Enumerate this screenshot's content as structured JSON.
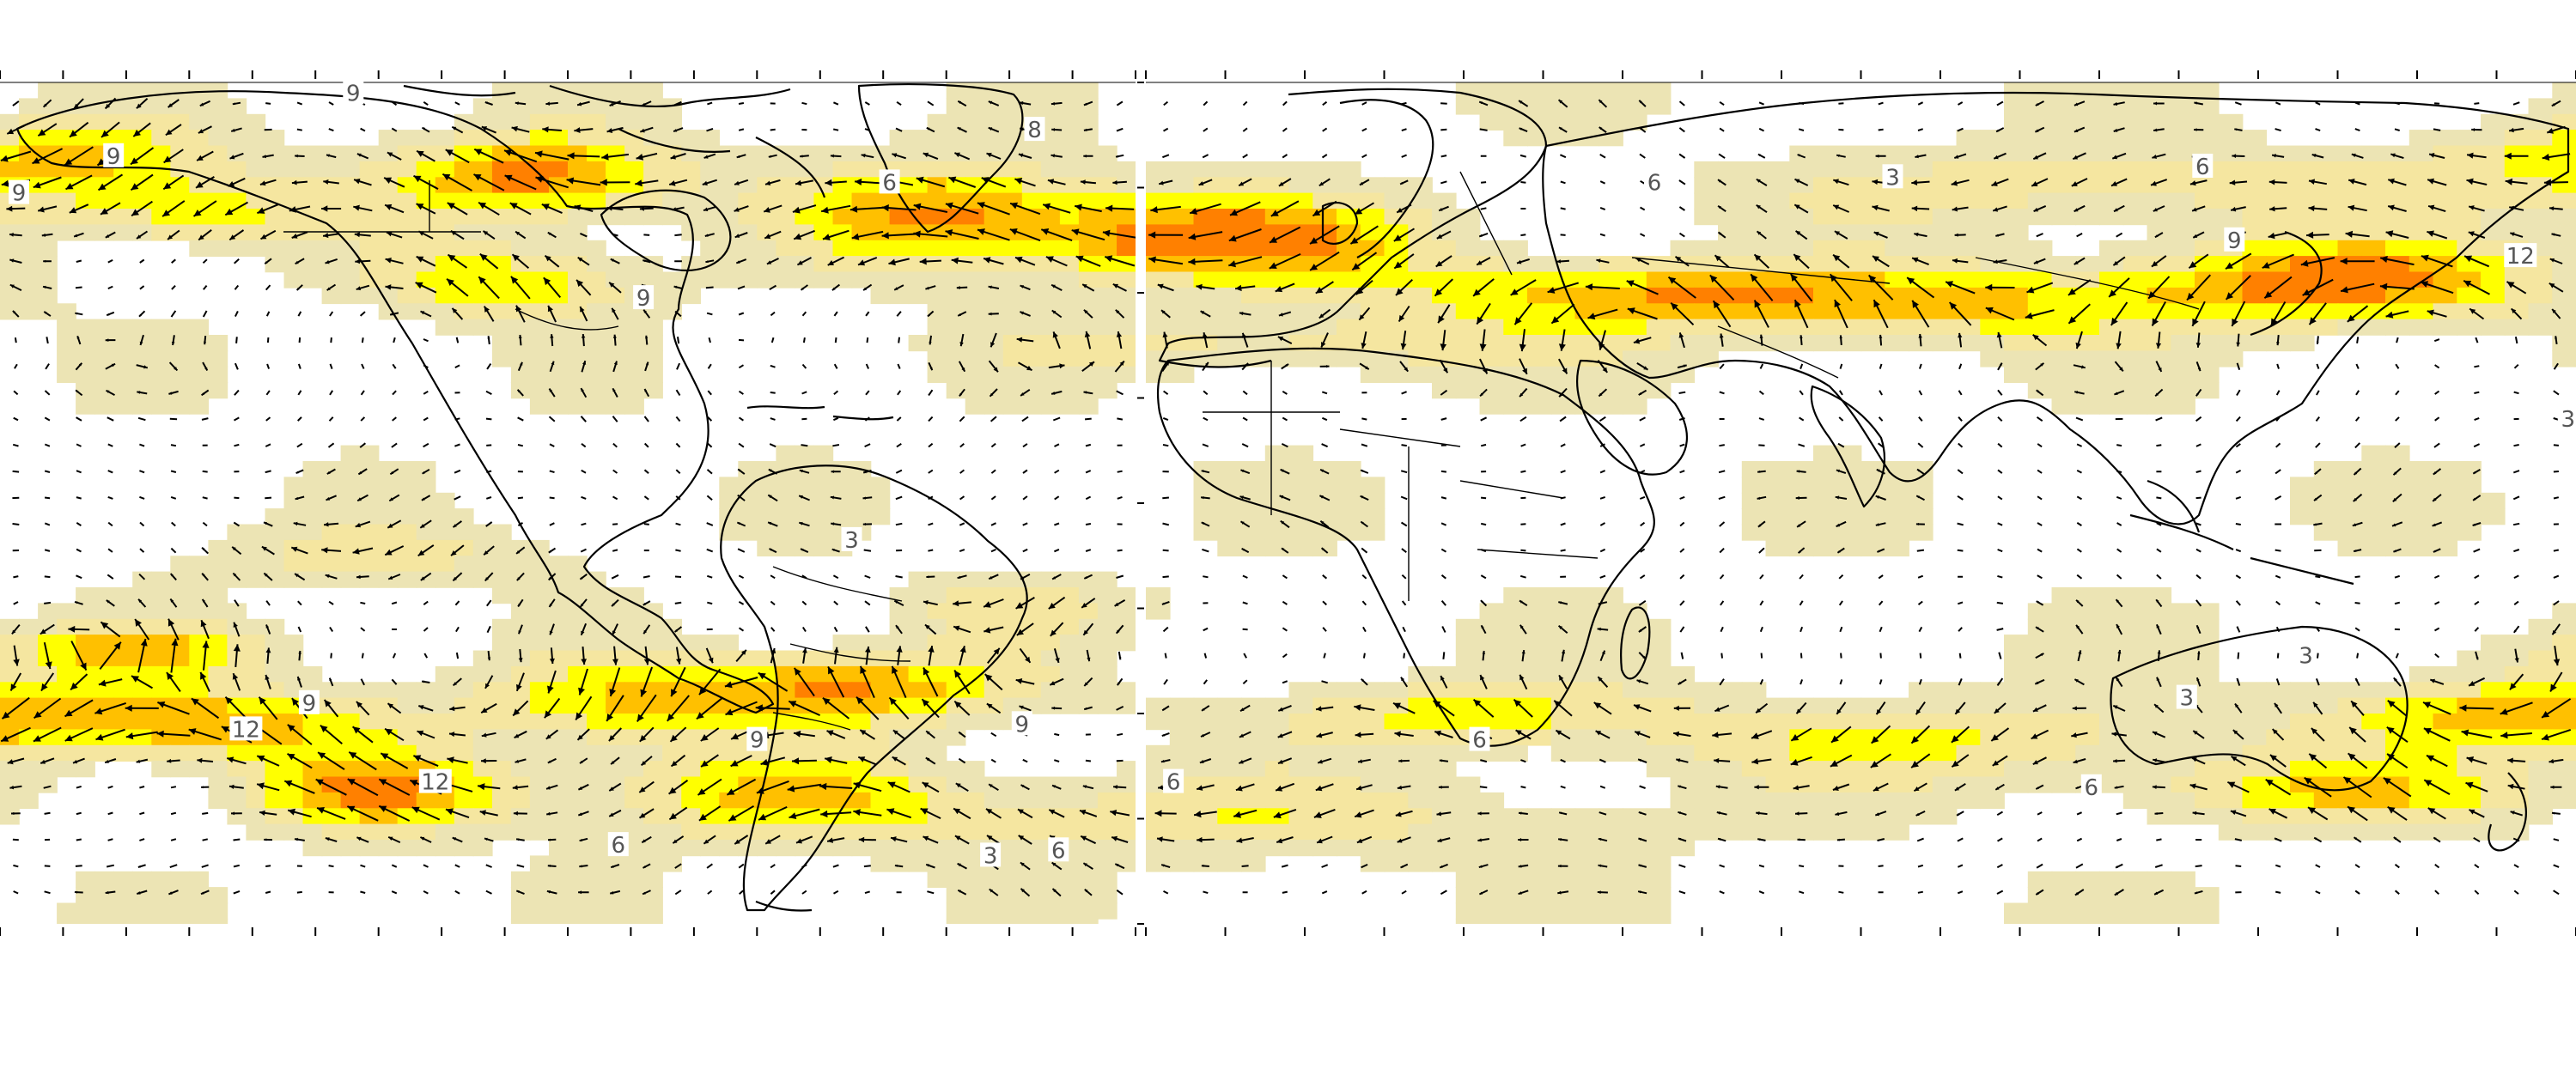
{
  "colors": {
    "background": "#ffffff",
    "speed_3_6": "#ece4b4",
    "speed_6_9": "#f5e6a0",
    "speed_9_12": "#ffff00",
    "speed_12_15": "#ffc000",
    "speed_15_plus": "#ff8000",
    "coastline": "#000000",
    "arrow": "#000000",
    "label_text": "#555555"
  },
  "contour_labels": {
    "west": [
      {
        "text": "9",
        "lon": -124,
        "lat": 78
      },
      {
        "text": "9",
        "lon": -162,
        "lat": 66
      },
      {
        "text": "9",
        "lon": -177,
        "lat": 59
      },
      {
        "text": "8",
        "lon": -16,
        "lat": 71
      },
      {
        "text": "6",
        "lon": -39,
        "lat": 61
      },
      {
        "text": "9",
        "lon": -78,
        "lat": 39
      },
      {
        "text": "3",
        "lon": -45,
        "lat": -7
      },
      {
        "text": "9",
        "lon": -131,
        "lat": -38
      },
      {
        "text": "12",
        "lon": -141,
        "lat": -43
      },
      {
        "text": "12",
        "lon": -111,
        "lat": -53
      },
      {
        "text": "9",
        "lon": -18,
        "lat": -42
      },
      {
        "text": "9",
        "lon": -60,
        "lat": -45
      },
      {
        "text": "6",
        "lon": 6,
        "lat": -53
      },
      {
        "text": "6",
        "lon": -82,
        "lat": -65
      },
      {
        "text": "3",
        "lon": -23,
        "lat": -67
      }
    ],
    "east": [
      {
        "text": "6",
        "lon": 64,
        "lat": 61
      },
      {
        "text": "3",
        "lon": 94,
        "lat": 62
      },
      {
        "text": "6",
        "lon": 133,
        "lat": 64
      },
      {
        "text": "9",
        "lon": 137,
        "lat": 50
      },
      {
        "text": "12",
        "lon": 173,
        "lat": 47
      },
      {
        "text": "3",
        "lon": 179,
        "lat": 16
      },
      {
        "text": "3",
        "lon": 146,
        "lat": -29
      },
      {
        "text": "3",
        "lon": 131,
        "lat": -37
      },
      {
        "text": "6",
        "lon": 42,
        "lat": -45
      },
      {
        "text": "6",
        "lon": 119,
        "lat": -54
      },
      {
        "text": "6",
        "lon": -11,
        "lat": -66
      }
    ]
  }
}
